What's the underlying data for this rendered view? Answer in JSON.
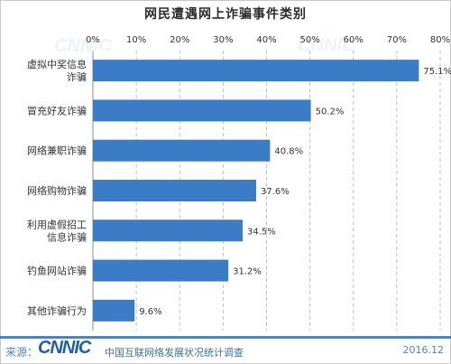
{
  "chart_data": {
    "type": "bar",
    "orientation": "horizontal",
    "title": "网民遭遇网上诈骗事件类别",
    "categories": [
      "虚拟中奖信息诈骗",
      "冒充好友诈骗",
      "网络兼职诈骗",
      "网络购物诈骗",
      "利用虚假招工信息诈骗",
      "钓鱼网站诈骗",
      "其他诈骗行为"
    ],
    "values": [
      75.1,
      50.2,
      40.8,
      37.6,
      34.5,
      31.2,
      9.6
    ],
    "value_labels": [
      "75.1%",
      "50.2%",
      "40.8%",
      "37.6%",
      "34.5%",
      "31.2%",
      "9.6%"
    ],
    "xlim": [
      0,
      80
    ],
    "xticks": [
      "0%",
      "10%",
      "20%",
      "30%",
      "40%",
      "50%",
      "60%",
      "70%",
      "80%"
    ],
    "x_axis_position": "top",
    "grid": "vertical dashed",
    "bar_color": "#3a7cc6"
  },
  "footer": {
    "source_label": "来源：",
    "logo_text": "CNNIC",
    "org_name": "中国互联网络发展状况统计调查",
    "date": "2016.12"
  },
  "watermark_text": "CNNIC"
}
